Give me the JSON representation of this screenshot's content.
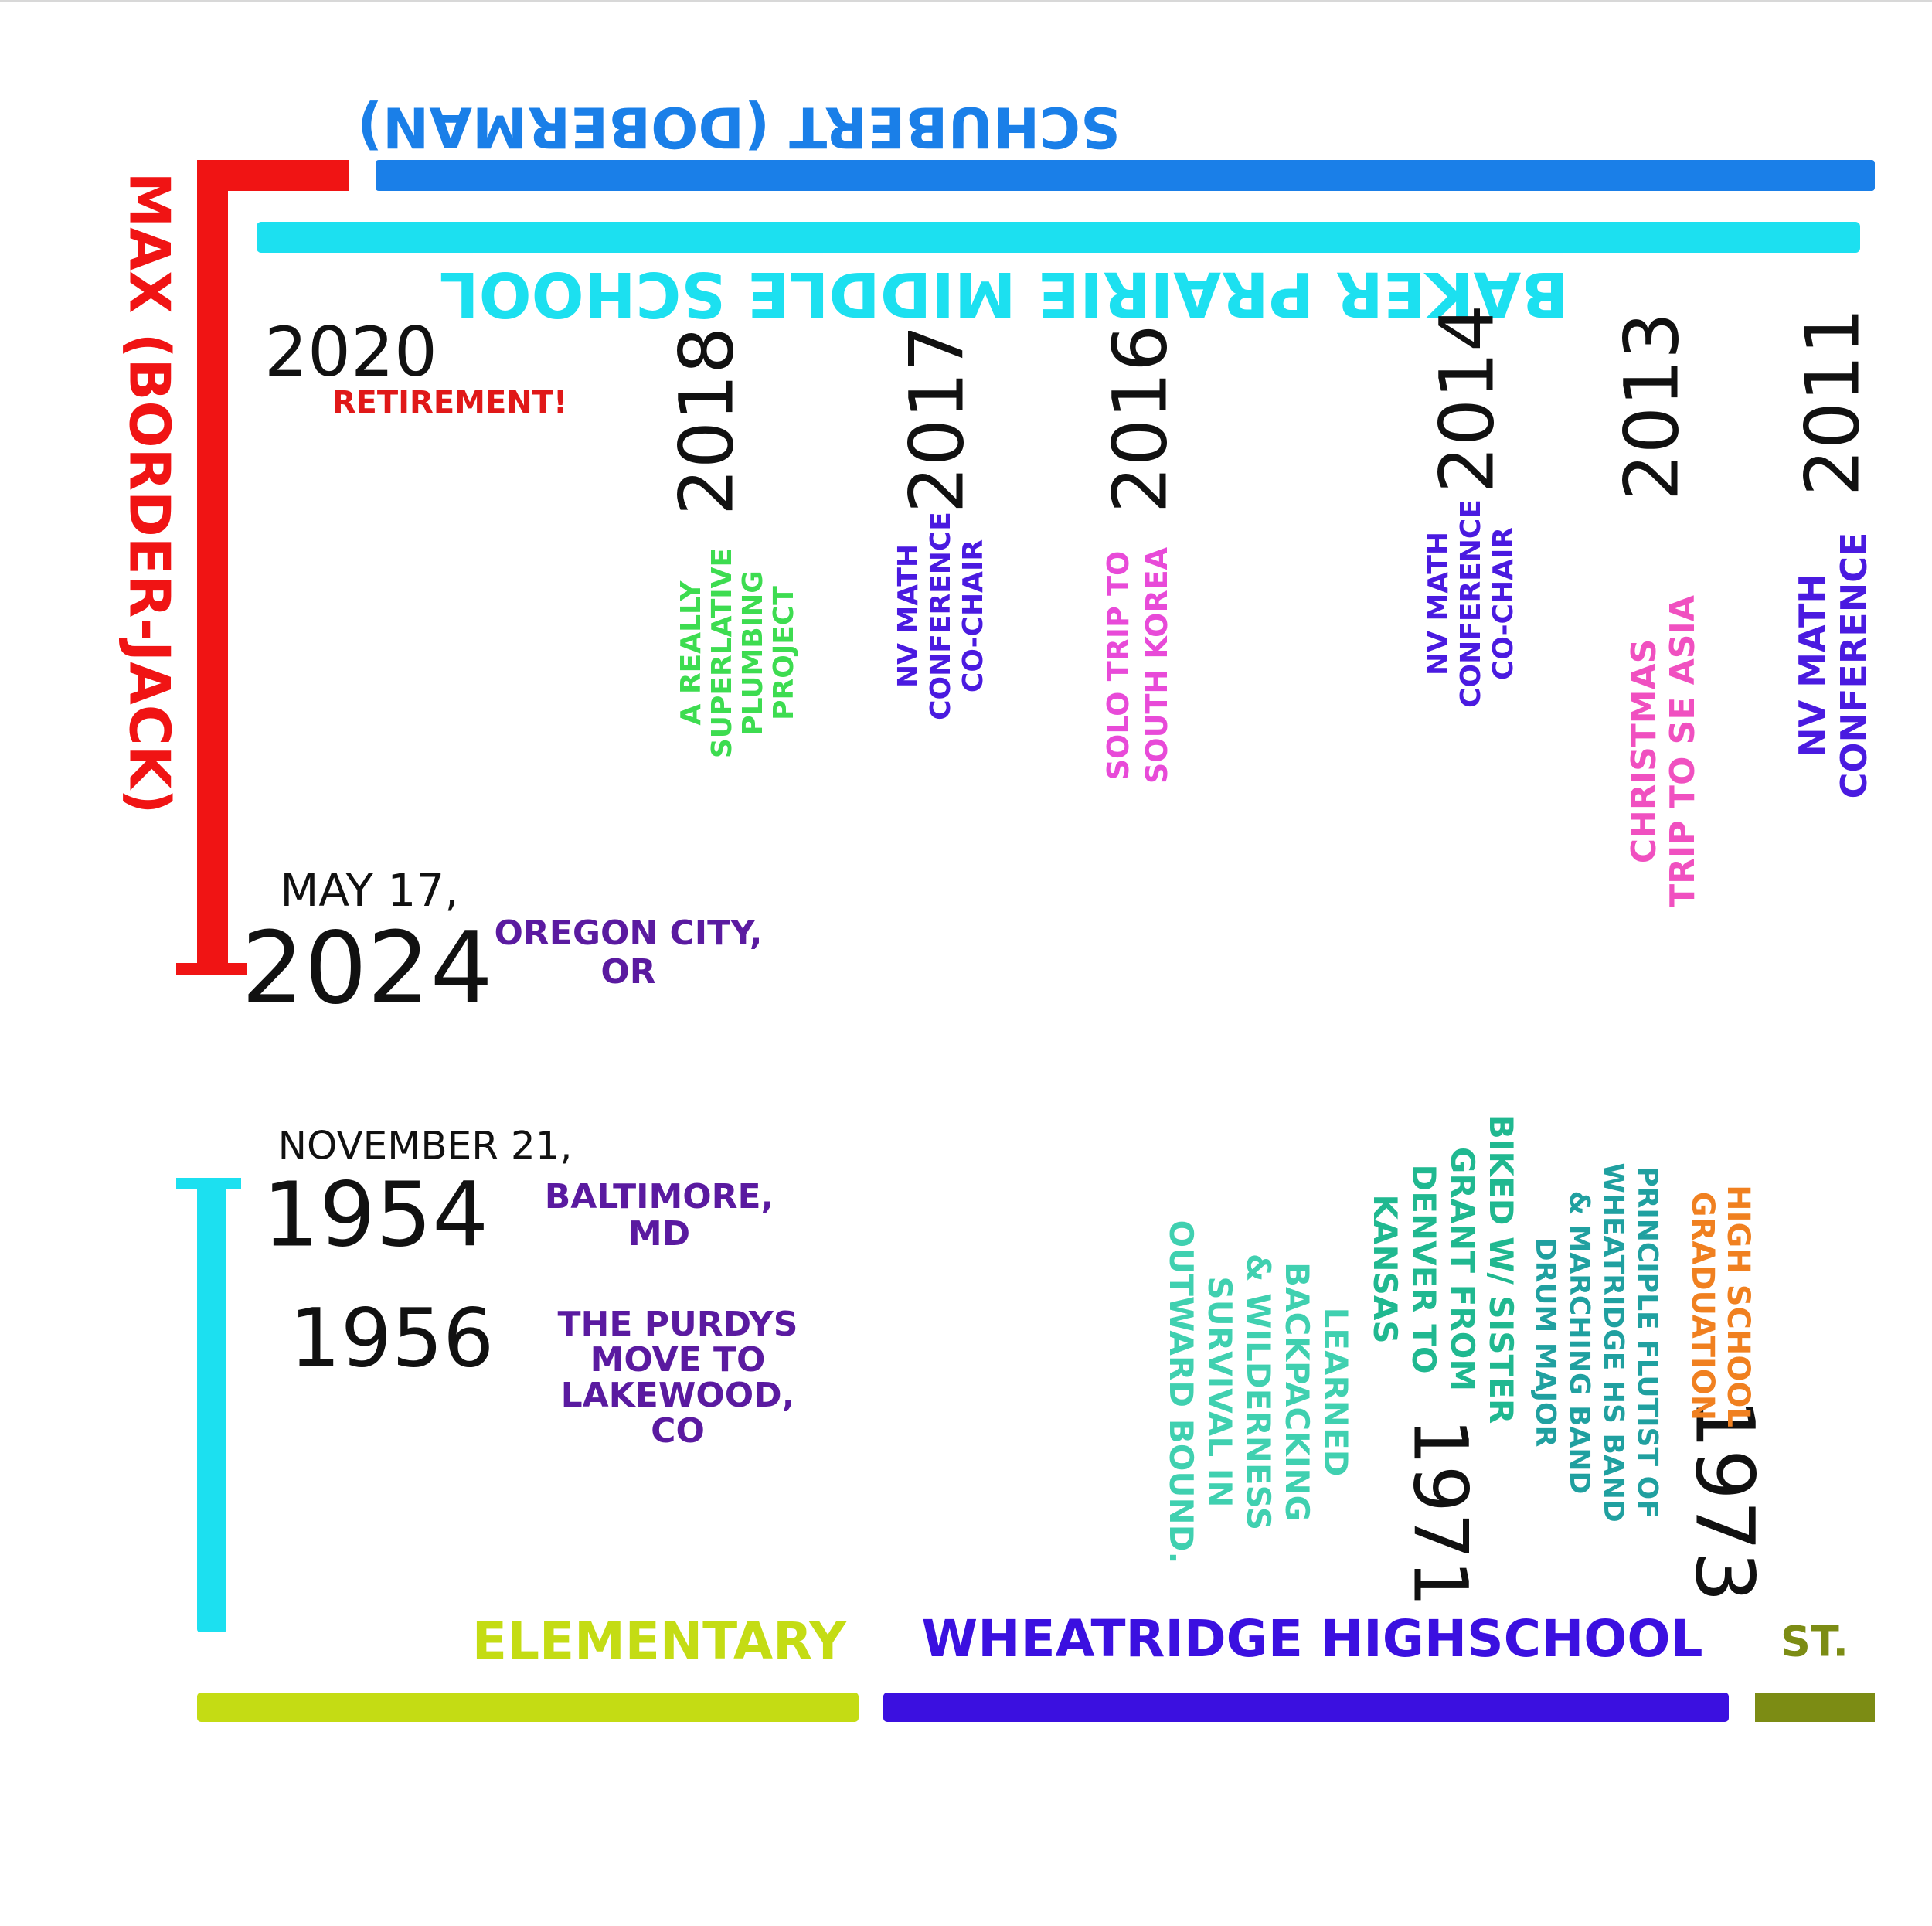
{
  "bands": {
    "schubert": "SCHUBERT (DOBERMAN)",
    "max": "MAX (BORDER-JACK)",
    "middle_school": "BAKER PRAIRIE MIDDLE SCHOOL",
    "elementary": "ELEMENTARY",
    "highschool": "WHEATRIDGE HIGHSCHOOL",
    "st": "ST."
  },
  "events": [
    {
      "year": "2020",
      "notes": [
        [
          "RETIREMENT!"
        ]
      ]
    },
    {
      "year": "2018",
      "notes": [
        [
          "A REALLY",
          "SUPERLATIVE",
          "PLUMBING",
          "PROJECT"
        ]
      ]
    },
    {
      "year": "2017",
      "notes": [
        [
          "NV MATH",
          "CONFERENCE",
          "CO-CHAIR"
        ]
      ]
    },
    {
      "year": "2016",
      "notes": [
        [
          "SOLO TRIP TO",
          "SOUTH KOREA"
        ]
      ]
    },
    {
      "year": "2014",
      "notes": [
        [
          "NV MATH",
          "CONFERENCE",
          "CO-CHAIR"
        ]
      ]
    },
    {
      "year": "2013",
      "notes": [
        [
          "CHRISTMAS",
          "TRIP TO SE ASIA"
        ]
      ]
    },
    {
      "year": "2011",
      "notes": [
        [
          "NV MATH",
          "CONFERENCE"
        ]
      ]
    },
    {
      "date": "MAY 17,",
      "year": "2024",
      "notes": [
        [
          "OREGON CITY,",
          "OR"
        ]
      ]
    },
    {
      "date": "NOVEMBER 21,",
      "year": "1954",
      "notes": [
        [
          "BALTIMORE,",
          "MD"
        ]
      ]
    },
    {
      "year": "1956",
      "notes": [
        [
          "THE PURDYS",
          "MOVE TO",
          "LAKEWOOD,",
          "CO"
        ]
      ]
    },
    {
      "year": "1971",
      "notes": [
        [
          "BIKED W/ SISTER",
          "GRANT FROM",
          "DENVER TO",
          "KANSAS"
        ],
        [
          "LEARNED",
          "BACKPACKING",
          "& WILDERNESS",
          "SURVIVAL IN",
          "OUTWARD BOUND."
        ]
      ]
    },
    {
      "year": "1973",
      "notes": [
        [
          "HIGH SCHOOL",
          "GRADUATION"
        ],
        [
          "PRINCIPLE FLUTIST OF",
          "WHEATRIDGE HS BAND",
          "& MARCHING BAND",
          "DRUM MAJOR"
        ]
      ]
    }
  ]
}
